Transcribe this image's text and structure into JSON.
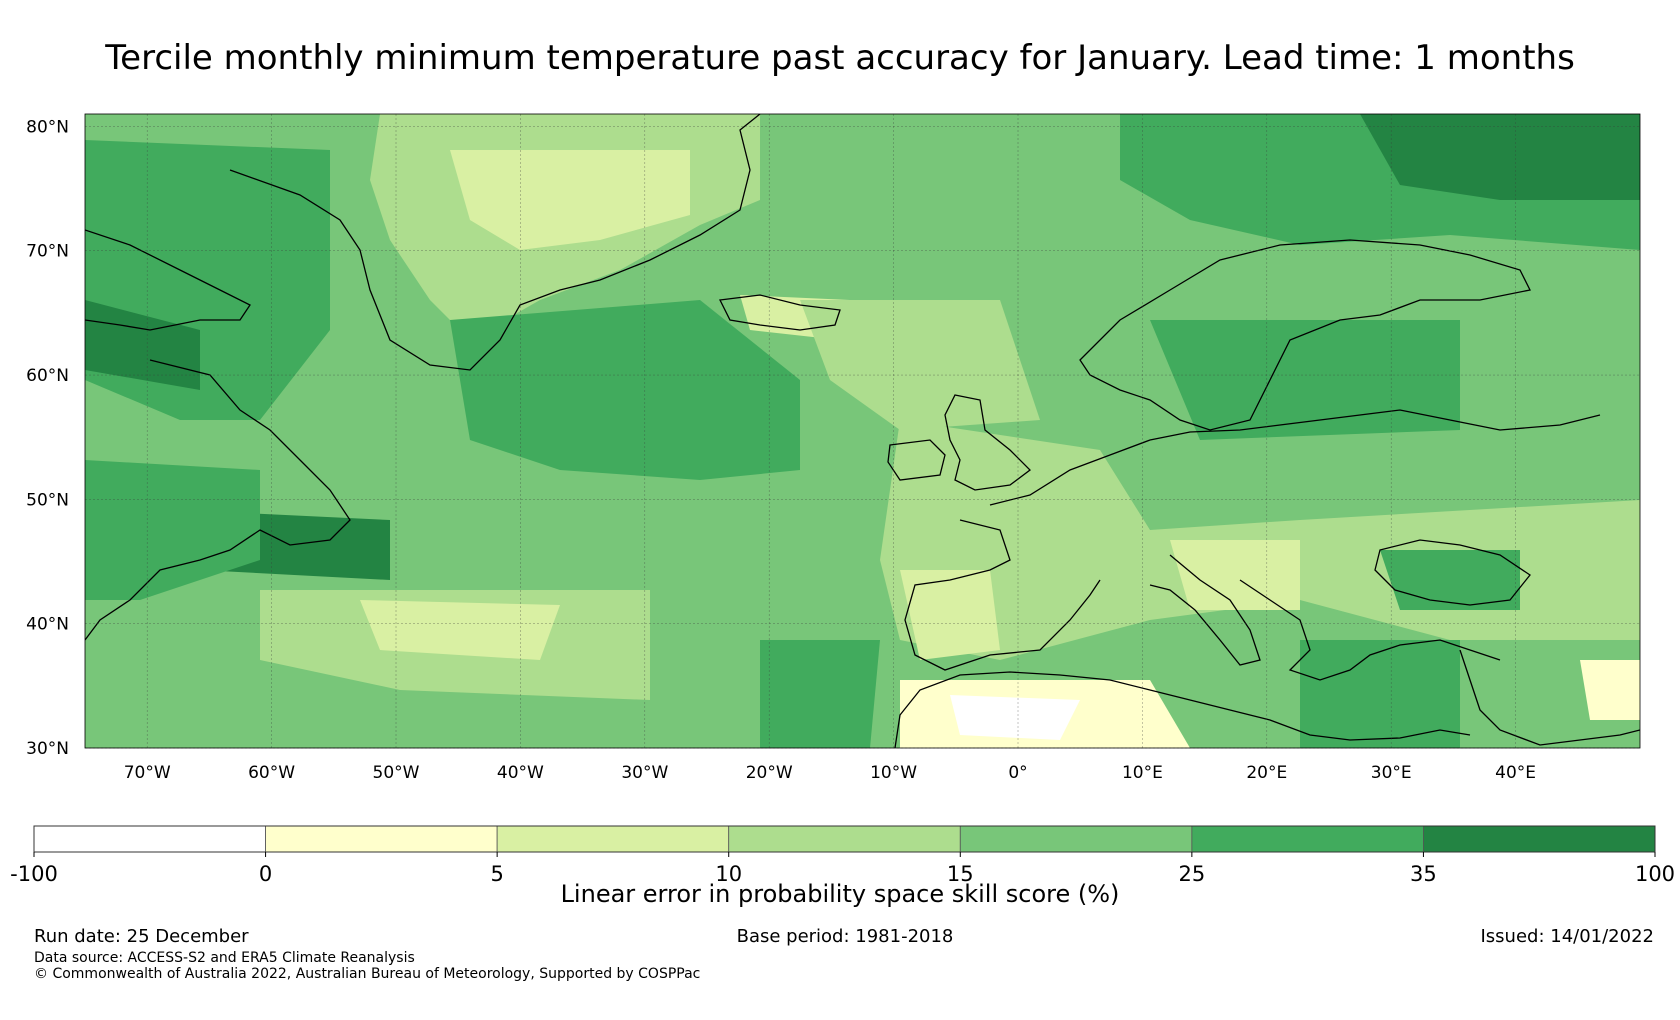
{
  "title": "Tercile monthly minimum temperature past accuracy for January. Lead time: 1 months",
  "map": {
    "lat_range": [
      30,
      81
    ],
    "lon_range": [
      -75,
      50
    ],
    "lat_ticks": [
      {
        "value": 80,
        "label": "80°N"
      },
      {
        "value": 70,
        "label": "70°N"
      },
      {
        "value": 60,
        "label": "60°N"
      },
      {
        "value": 50,
        "label": "50°N"
      },
      {
        "value": 40,
        "label": "40°N"
      },
      {
        "value": 30,
        "label": "30°N"
      }
    ],
    "lon_ticks": [
      {
        "value": -70,
        "label": "70°W"
      },
      {
        "value": -60,
        "label": "60°W"
      },
      {
        "value": -50,
        "label": "50°W"
      },
      {
        "value": -40,
        "label": "40°W"
      },
      {
        "value": -30,
        "label": "30°W"
      },
      {
        "value": -20,
        "label": "20°W"
      },
      {
        "value": -10,
        "label": "10°W"
      },
      {
        "value": 0,
        "label": "0°"
      },
      {
        "value": 10,
        "label": "10°E"
      },
      {
        "value": 20,
        "label": "20°E"
      },
      {
        "value": 30,
        "label": "30°E"
      },
      {
        "value": 40,
        "label": "40°E"
      }
    ]
  },
  "colorbar": {
    "bounds": [
      "-100",
      "0",
      "5",
      "10",
      "15",
      "25",
      "35",
      "100"
    ],
    "colors": [
      "#ffffff",
      "#ffffcc",
      "#d9f0a3",
      "#addd8e",
      "#78c679",
      "#41ab5d",
      "#238443"
    ],
    "label": "Linear error in probability space skill score (%)"
  },
  "footer": {
    "run_date": "Run date: 25 December",
    "base_period": "Base period: 1981-2018",
    "issued": "Issued: 14/01/2022",
    "data_source": "Data source: ACCESS-S2 and ERA5 Climate Reanalysis",
    "copyright": "© Commonwealth of Australia 2022, Australian Bureau of Meteorology, Supported by COSPPac"
  }
}
